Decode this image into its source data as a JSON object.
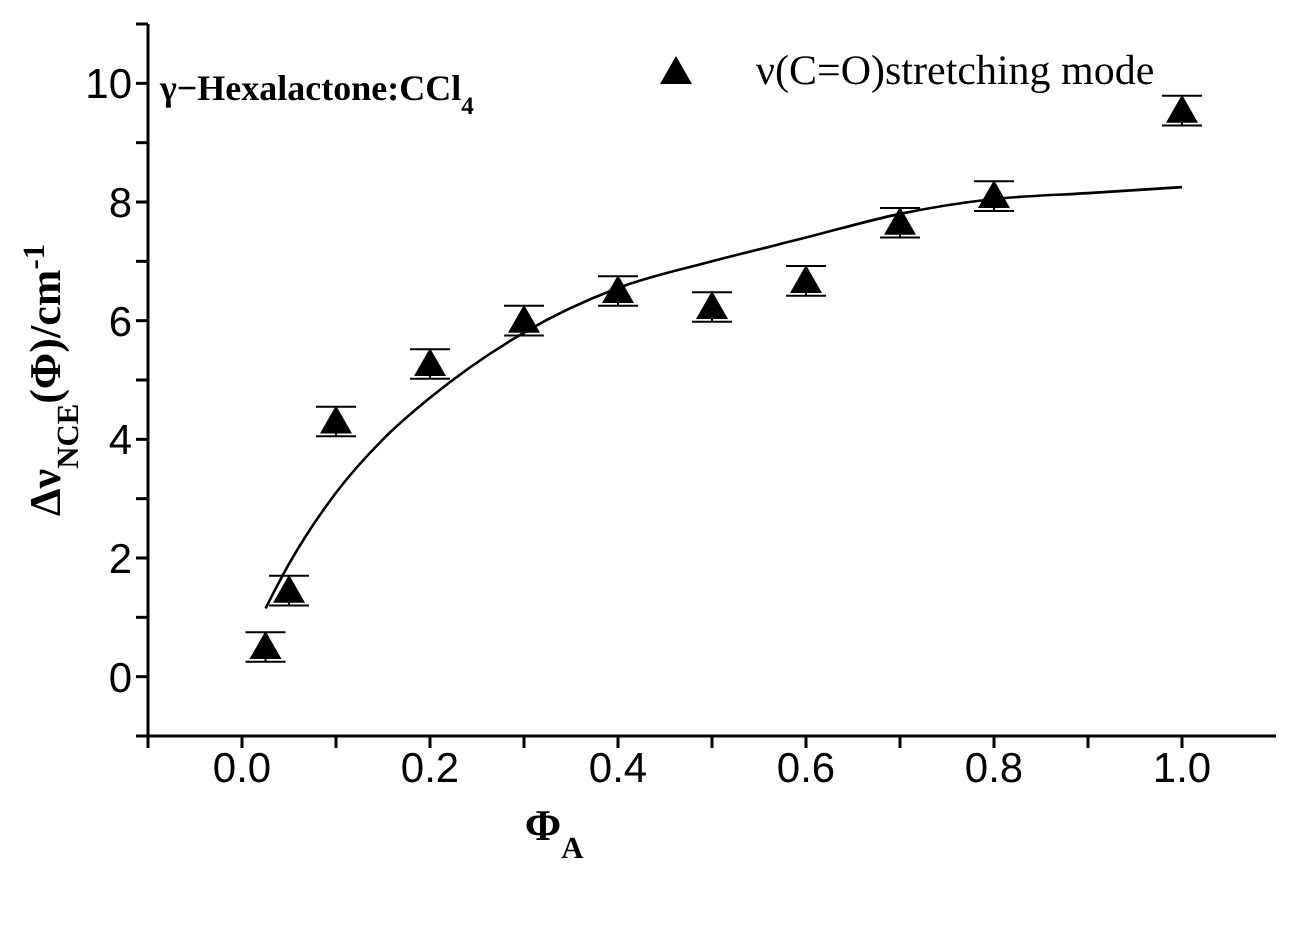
{
  "chart_data": {
    "type": "scatter",
    "xlabel": "Φ$_{A}$",
    "ylabel": "Δν$_{NCE}$(Φ)/cm$^{-1}$",
    "annotations": [
      "γ−Hexalactone:CCl$_{4}$"
    ],
    "xlim": [
      -0.1,
      1.1
    ],
    "xticks": [
      {
        "value": -0.1,
        "label": null
      },
      {
        "value": 0,
        "label": "0.0"
      },
      {
        "value": 0.1,
        "label": null
      },
      {
        "value": 0.2,
        "label": "0.2"
      },
      {
        "value": 0.3,
        "label": null
      },
      {
        "value": 0.4,
        "label": "0.4"
      },
      {
        "value": 0.5,
        "label": null
      },
      {
        "value": 0.6,
        "label": "0.6"
      },
      {
        "value": 0.7,
        "label": null
      },
      {
        "value": 0.8,
        "label": "0.8"
      },
      {
        "value": 0.9,
        "label": null
      },
      {
        "value": 1,
        "label": "1.0"
      }
    ],
    "ylim": [
      -1,
      11
    ],
    "yticks": [
      {
        "value": -1,
        "label": null
      },
      0,
      {
        "value": 1,
        "label": null
      },
      2,
      {
        "value": 3,
        "label": null
      },
      4,
      {
        "value": 5,
        "label": null
      },
      6,
      {
        "value": 7,
        "label": null
      },
      8,
      {
        "value": 9,
        "label": null
      },
      10,
      {
        "value": 11,
        "label": null
      }
    ],
    "grid": false,
    "legend": "top right",
    "series": [
      {
        "name": "ν(C=O)stretching mode",
        "color": "#000000",
        "marker": "triangle",
        "x": [
          0.025,
          0.05,
          0.1,
          0.2,
          0.3,
          0.4,
          0.5,
          0.6,
          0.7,
          0.8,
          1.0
        ],
        "values": [
          0.5,
          1.45,
          4.3,
          5.27,
          6.0,
          6.5,
          6.23,
          6.67,
          7.65,
          8.1,
          9.54
        ],
        "errors": [
          0.25,
          0.25,
          0.25,
          0.25,
          0.25,
          0.25,
          0.25,
          0.25,
          0.25,
          0.25,
          0.25
        ]
      },
      {
        "type": "line",
        "color": "#000000",
        "marker": "none",
        "line_style": "solid",
        "x": [
          0.025,
          0.05,
          0.1,
          0.15,
          0.2,
          0.3,
          0.4,
          0.5,
          0.6,
          0.7,
          0.8,
          0.9,
          1.0
        ],
        "values": [
          1.15,
          1.9,
          3.1,
          4.0,
          4.7,
          5.8,
          6.55,
          7.0,
          7.4,
          7.8,
          8.05,
          8.15,
          8.25
        ]
      }
    ]
  }
}
